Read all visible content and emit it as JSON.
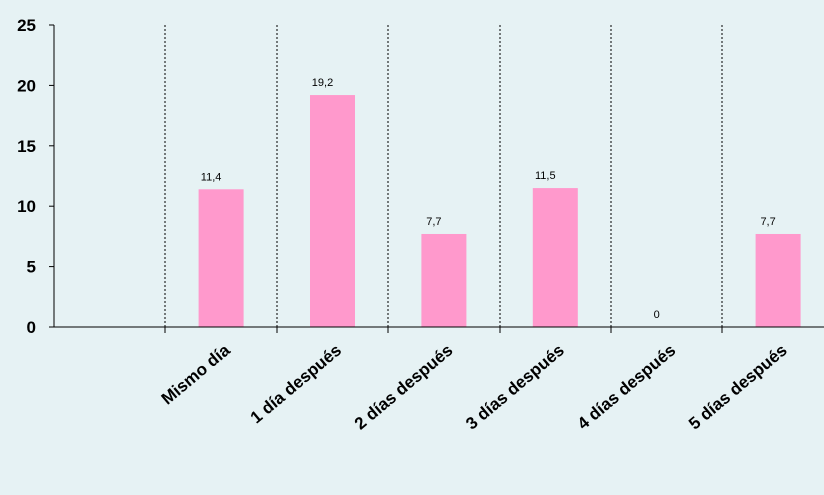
{
  "chart_data": {
    "type": "bar",
    "categories": [
      "",
      "Mismo día",
      "1 día después",
      "2 días después",
      "3 días después",
      "4 días después",
      "5 días después"
    ],
    "values": [
      null,
      11.4,
      19.2,
      7.7,
      11.5,
      0,
      7.7
    ],
    "data_labels": [
      "",
      "11,4",
      "19,2",
      "7,7",
      "11,5",
      "0",
      "7,7"
    ],
    "y_ticks": [
      "0",
      "5",
      "10",
      "15",
      "20",
      "25"
    ],
    "ylim": [
      0,
      25
    ],
    "bar_color": "#ff99cc",
    "background_color": "#e6f2f4",
    "grid": "vertical dotted separators",
    "legend": "none"
  }
}
